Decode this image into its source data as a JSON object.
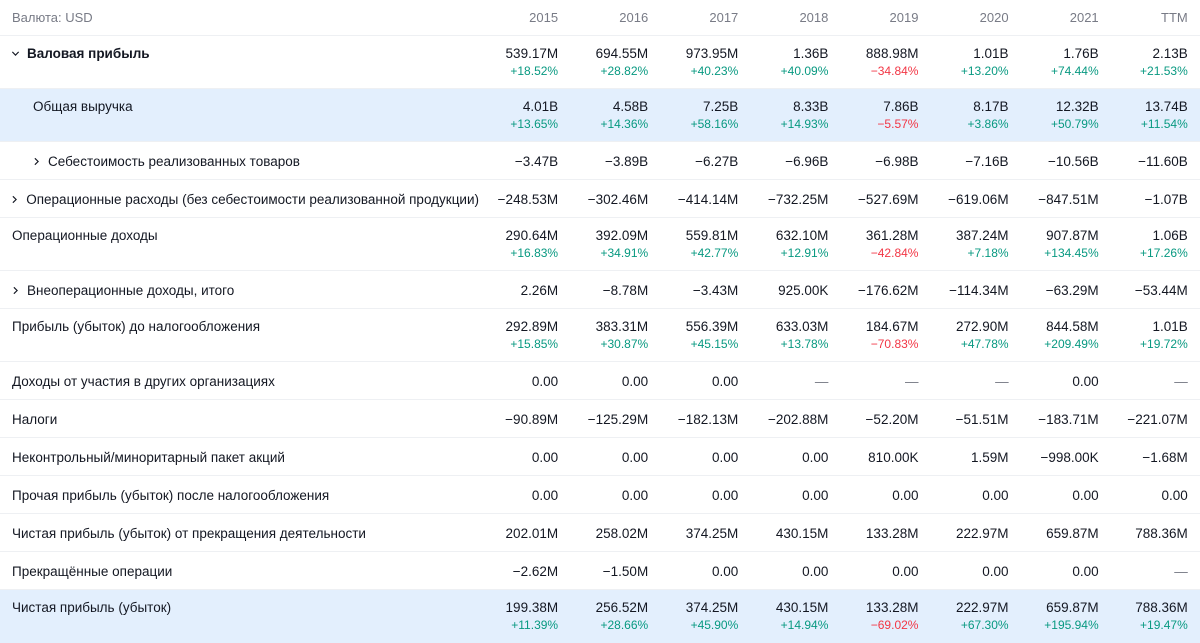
{
  "currency_label": "Валюта: USD",
  "years": [
    "2015",
    "2016",
    "2017",
    "2018",
    "2019",
    "2020",
    "2021",
    "TTM"
  ],
  "rows": [
    {
      "label": "Валовая прибыль",
      "values": [
        "539.17M",
        "694.55M",
        "973.95M",
        "1.36B",
        "888.98M",
        "1.01B",
        "1.76B",
        "2.13B"
      ],
      "changes": [
        "+18.52%",
        "+28.82%",
        "+40.23%",
        "+40.09%",
        "−34.84%",
        "+13.20%",
        "+74.44%",
        "+21.53%"
      ]
    },
    {
      "label": "Общая выручка",
      "values": [
        "4.01B",
        "4.58B",
        "7.25B",
        "8.33B",
        "7.86B",
        "8.17B",
        "12.32B",
        "13.74B"
      ],
      "changes": [
        "+13.65%",
        "+14.36%",
        "+58.16%",
        "+14.93%",
        "−5.57%",
        "+3.86%",
        "+50.79%",
        "+11.54%"
      ]
    },
    {
      "label": "Себестоимость реализованных товаров",
      "values": [
        "−3.47B",
        "−3.89B",
        "−6.27B",
        "−6.96B",
        "−6.98B",
        "−7.16B",
        "−10.56B",
        "−11.60B"
      ]
    },
    {
      "label": "Операционные расходы (без себестоимости реализованной продукции)",
      "values": [
        "−248.53M",
        "−302.46M",
        "−414.14M",
        "−732.25M",
        "−527.69M",
        "−619.06M",
        "−847.51M",
        "−1.07B"
      ]
    },
    {
      "label": "Операционные доходы",
      "values": [
        "290.64M",
        "392.09M",
        "559.81M",
        "632.10M",
        "361.28M",
        "387.24M",
        "907.87M",
        "1.06B"
      ],
      "changes": [
        "+16.83%",
        "+34.91%",
        "+42.77%",
        "+12.91%",
        "−42.84%",
        "+7.18%",
        "+134.45%",
        "+17.26%"
      ]
    },
    {
      "label": "Внеоперационные доходы, итого",
      "values": [
        "2.26M",
        "−8.78M",
        "−3.43M",
        "925.00K",
        "−176.62M",
        "−114.34M",
        "−63.29M",
        "−53.44M"
      ]
    },
    {
      "label": "Прибыль (убыток) до налогообложения",
      "values": [
        "292.89M",
        "383.31M",
        "556.39M",
        "633.03M",
        "184.67M",
        "272.90M",
        "844.58M",
        "1.01B"
      ],
      "changes": [
        "+15.85%",
        "+30.87%",
        "+45.15%",
        "+13.78%",
        "−70.83%",
        "+47.78%",
        "+209.49%",
        "+19.72%"
      ]
    },
    {
      "label": "Доходы от участия в других организациях",
      "values": [
        "0.00",
        "0.00",
        "0.00",
        "—",
        "—",
        "—",
        "0.00",
        "—"
      ]
    },
    {
      "label": "Налоги",
      "values": [
        "−90.89M",
        "−125.29M",
        "−182.13M",
        "−202.88M",
        "−52.20M",
        "−51.51M",
        "−183.71M",
        "−221.07M"
      ]
    },
    {
      "label": "Неконтрольный/миноритарный пакет акций",
      "values": [
        "0.00",
        "0.00",
        "0.00",
        "0.00",
        "810.00K",
        "1.59M",
        "−998.00K",
        "−1.68M"
      ]
    },
    {
      "label": "Прочая прибыль (убыток) после налогообложения",
      "values": [
        "0.00",
        "0.00",
        "0.00",
        "0.00",
        "0.00",
        "0.00",
        "0.00",
        "0.00"
      ]
    },
    {
      "label": "Чистая прибыль (убыток) от прекращения деятельности",
      "values": [
        "202.01M",
        "258.02M",
        "374.25M",
        "430.15M",
        "133.28M",
        "222.97M",
        "659.87M",
        "788.36M"
      ]
    },
    {
      "label": "Прекращённые операции",
      "values": [
        "−2.62M",
        "−1.50M",
        "0.00",
        "0.00",
        "0.00",
        "0.00",
        "0.00",
        "—"
      ]
    },
    {
      "label": "Чистая прибыль (убыток)",
      "values": [
        "199.38M",
        "256.52M",
        "374.25M",
        "430.15M",
        "133.28M",
        "222.97M",
        "659.87M",
        "788.36M"
      ],
      "changes": [
        "+11.39%",
        "+28.66%",
        "+45.90%",
        "+14.94%",
        "−69.02%",
        "+67.30%",
        "+195.94%",
        "+19.47%"
      ]
    }
  ],
  "colors": {
    "positive": "#089981",
    "negative": "#f23645",
    "highlight": "#e3effd",
    "muted": "#787b86"
  }
}
